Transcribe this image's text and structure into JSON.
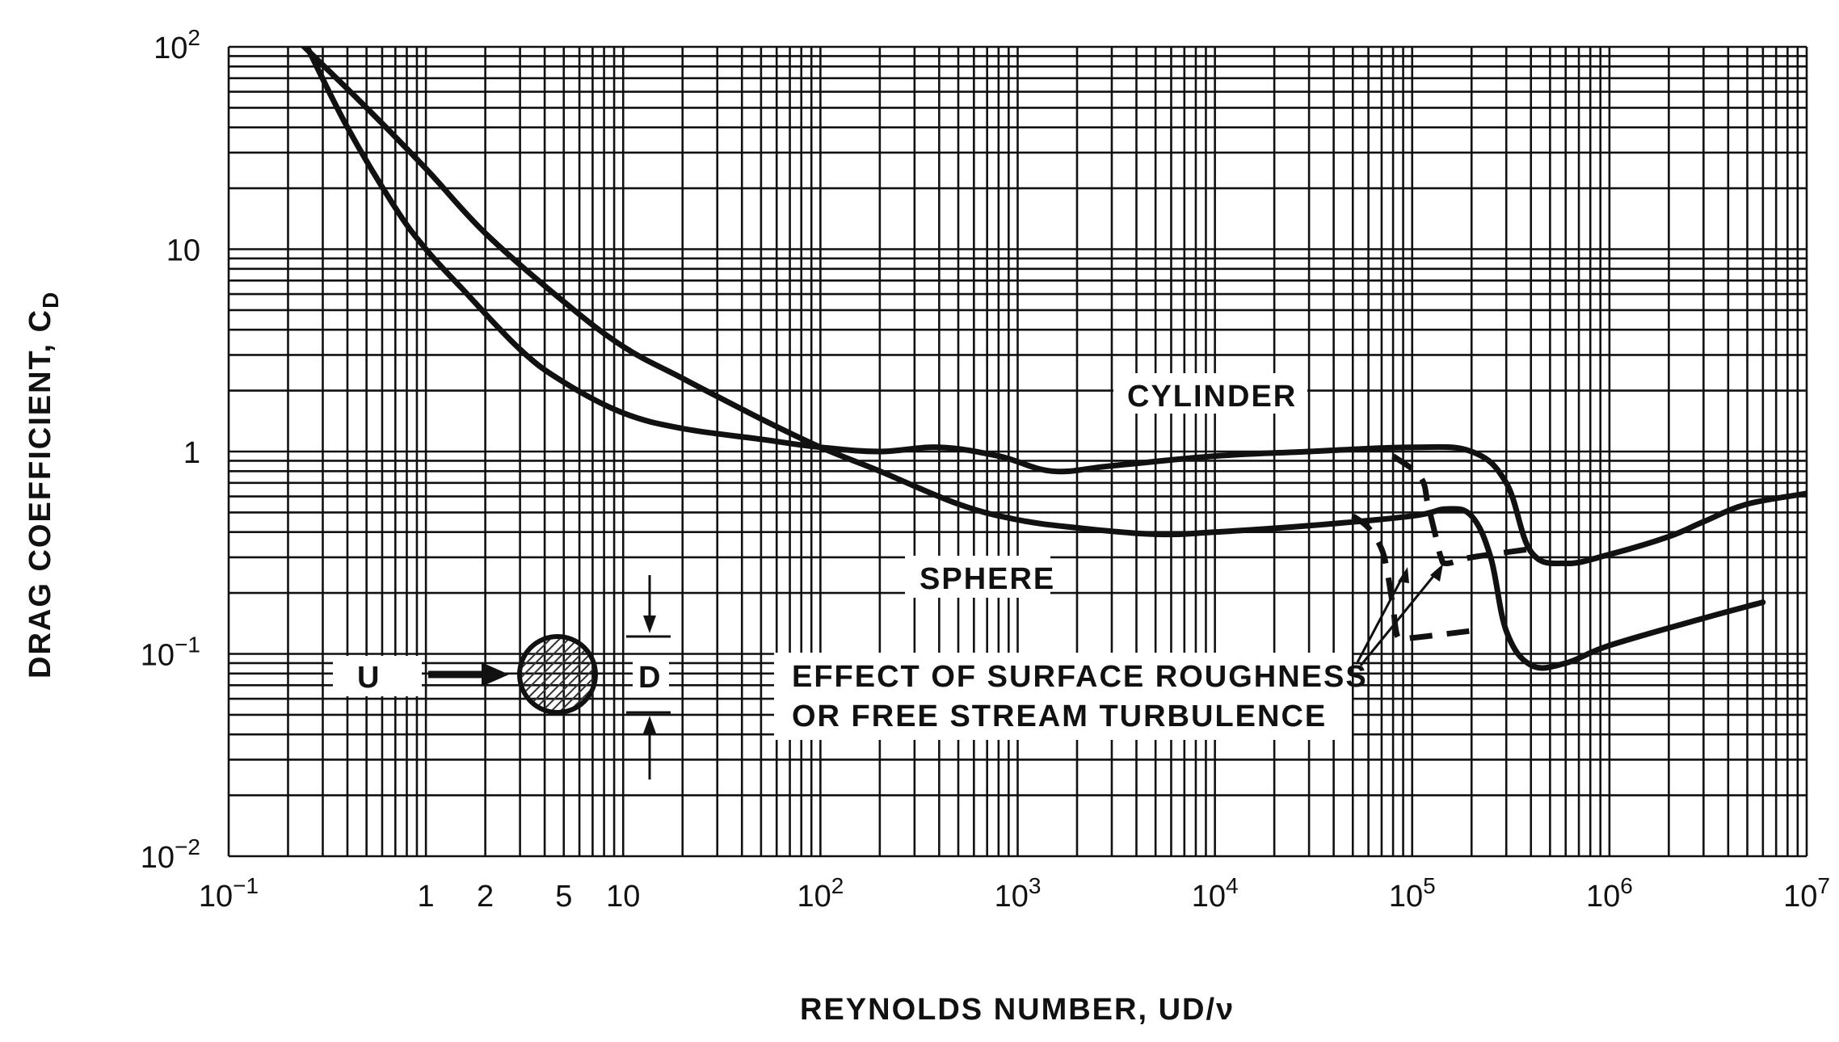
{
  "chart_data": {
    "type": "line",
    "x_scale": "log",
    "y_scale": "log",
    "xlim": [
      0.1,
      10000000
    ],
    "ylim": [
      0.01,
      100
    ],
    "grid": true,
    "xlabel": "REYNOLDS NUMBER, UD/ν",
    "ylabel": "DRAG COEFFICIENT, C",
    "ylabel_sub": "D",
    "x_ticks": [
      {
        "value": 0.1,
        "base": "10",
        "exp": "−1"
      },
      {
        "value": 1,
        "base": "1",
        "exp": ""
      },
      {
        "value": 2,
        "base": "2",
        "exp": ""
      },
      {
        "value": 5,
        "base": "5",
        "exp": ""
      },
      {
        "value": 10,
        "base": "10",
        "exp": ""
      },
      {
        "value": 100,
        "base": "10",
        "exp": "2"
      },
      {
        "value": 1000,
        "base": "10",
        "exp": "3"
      },
      {
        "value": 10000,
        "base": "10",
        "exp": "4"
      },
      {
        "value": 100000,
        "base": "10",
        "exp": "5"
      },
      {
        "value": 1000000,
        "base": "10",
        "exp": "6"
      },
      {
        "value": 10000000,
        "base": "10",
        "exp": "7"
      }
    ],
    "y_ticks": [
      {
        "value": 100,
        "base": "10",
        "exp": "2"
      },
      {
        "value": 10,
        "base": "10",
        "exp": ""
      },
      {
        "value": 1,
        "base": "1",
        "exp": ""
      },
      {
        "value": 0.1,
        "base": "10",
        "exp": "−1"
      },
      {
        "value": 0.01,
        "base": "10",
        "exp": "−2"
      }
    ],
    "series": [
      {
        "name": "CYLINDER",
        "style": "solid",
        "points": [
          [
            0.25,
            100
          ],
          [
            0.4,
            40
          ],
          [
            0.7,
            16
          ],
          [
            1,
            10
          ],
          [
            1.5,
            6.5
          ],
          [
            3,
            3.2
          ],
          [
            5,
            2.2
          ],
          [
            10,
            1.55
          ],
          [
            20,
            1.3
          ],
          [
            50,
            1.15
          ],
          [
            100,
            1.05
          ],
          [
            200,
            1.0
          ],
          [
            400,
            1.05
          ],
          [
            800,
            0.95
          ],
          [
            1500,
            0.8
          ],
          [
            3000,
            0.85
          ],
          [
            10000,
            0.95
          ],
          [
            30000,
            1.0
          ],
          [
            100000,
            1.05
          ],
          [
            200000,
            1.0
          ],
          [
            300000,
            0.7
          ],
          [
            400000,
            0.32
          ],
          [
            600000,
            0.28
          ],
          [
            1000000,
            0.31
          ],
          [
            2000000,
            0.38
          ],
          [
            3000000,
            0.45
          ],
          [
            5000000,
            0.55
          ],
          [
            10000000,
            0.62
          ]
        ]
      },
      {
        "name": "SPHERE",
        "style": "solid",
        "points": [
          [
            0.1,
            240
          ],
          [
            0.2,
            120
          ],
          [
            0.5,
            50
          ],
          [
            1,
            25
          ],
          [
            2,
            12
          ],
          [
            5,
            5.5
          ],
          [
            10,
            3.3
          ],
          [
            20,
            2.3
          ],
          [
            50,
            1.45
          ],
          [
            100,
            1.05
          ],
          [
            200,
            0.8
          ],
          [
            500,
            0.55
          ],
          [
            1000,
            0.46
          ],
          [
            2000,
            0.42
          ],
          [
            5000,
            0.39
          ],
          [
            10000,
            0.4
          ],
          [
            30000,
            0.43
          ],
          [
            100000,
            0.48
          ],
          [
            150000,
            0.52
          ],
          [
            200000,
            0.48
          ],
          [
            250000,
            0.3
          ],
          [
            300000,
            0.13
          ],
          [
            400000,
            0.088
          ],
          [
            600000,
            0.09
          ],
          [
            1000000,
            0.11
          ],
          [
            3000000,
            0.15
          ],
          [
            6000000,
            0.18
          ]
        ]
      },
      {
        "name": "",
        "style": "dashed",
        "points": [
          [
            80000,
            0.95
          ],
          [
            110000,
            0.75
          ],
          [
            120000,
            0.55
          ],
          [
            130000,
            0.4
          ],
          [
            140000,
            0.3
          ],
          [
            150000,
            0.28
          ],
          [
            200000,
            0.3
          ],
          [
            400000,
            0.33
          ]
        ]
      },
      {
        "name": "",
        "style": "dashed",
        "points": [
          [
            50000,
            0.48
          ],
          [
            60000,
            0.42
          ],
          [
            70000,
            0.33
          ],
          [
            75000,
            0.25
          ],
          [
            80000,
            0.17
          ],
          [
            85000,
            0.12
          ],
          [
            100000,
            0.12
          ],
          [
            200000,
            0.13
          ]
        ]
      }
    ],
    "annotations": {
      "cylinder_label": "CYLINDER",
      "sphere_label": "SPHERE",
      "roughness_line1": "EFFECT OF SURFACE ROUGHNESS",
      "roughness_line2": "OR FREE STREAM TURBULENCE",
      "velocity_label": "U",
      "diameter_label": "D"
    }
  }
}
